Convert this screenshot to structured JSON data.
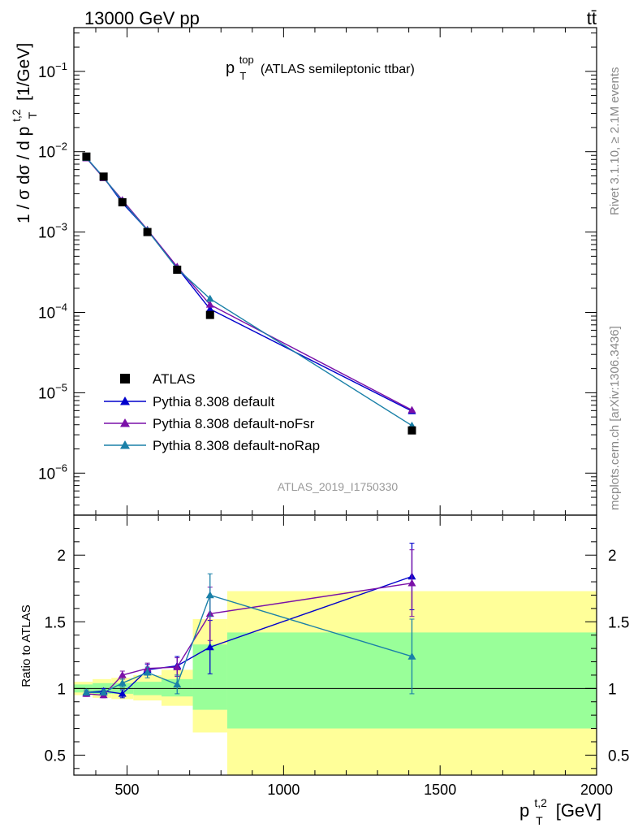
{
  "header": {
    "energy_label": "13000 GeV pp",
    "process_label": "tt̄"
  },
  "side_labels": {
    "rivet": "Rivet 3.1.10, ≥ 2.1M events",
    "mcplots": "mcplots.cern.ch [arXiv:1306.3436]"
  },
  "analysis_id": "ATLAS_2019_I1750330",
  "plot_title": {
    "main": "p",
    "sup": "top",
    "sub": "T",
    "rest": "(ATLAS semileptonic ttbar)"
  },
  "axes": {
    "ylabel_main": "1 / σ dσ / d p",
    "ylabel_sup": "t,2",
    "ylabel_sub": "T",
    "ylabel_unit": "[1/GeV]",
    "ratio_ylabel": "Ratio to ATLAS",
    "xlabel_main": "p",
    "xlabel_sup": "t,2",
    "xlabel_sub": "T",
    "xlabel_unit": "[GeV]",
    "x_ticks": [
      "500",
      "1000",
      "1500",
      "2000"
    ],
    "y_ticks_main": [
      {
        "base": "10",
        "exp": "−1"
      },
      {
        "base": "10",
        "exp": "−2"
      },
      {
        "base": "10",
        "exp": "−3"
      },
      {
        "base": "10",
        "exp": "−4"
      },
      {
        "base": "10",
        "exp": "−5"
      },
      {
        "base": "10",
        "exp": "−6"
      }
    ],
    "y_ticks_ratio": [
      "2",
      "1.5",
      "1",
      "0.5"
    ]
  },
  "legend": [
    {
      "label": "ATLAS",
      "color": "#000000",
      "marker": "square"
    },
    {
      "label": "Pythia 8.308 default",
      "color": "#0000cc",
      "marker": "triangle"
    },
    {
      "label": "Pythia 8.308 default-noFsr",
      "color": "#7a10a8",
      "marker": "triangle"
    },
    {
      "label": "Pythia 8.308 default-noRap",
      "color": "#1a80a8",
      "marker": "triangle"
    }
  ],
  "chart_data": {
    "type": "line",
    "xlim": [
      330,
      2000
    ],
    "ylim": [
      3e-07,
      0.35
    ],
    "yscale": "log",
    "ratio_ylim": [
      0.35,
      2.3
    ],
    "data": {
      "name": "ATLAS",
      "x": [
        370,
        425,
        485,
        565,
        660,
        765,
        1410
      ],
      "y": [
        0.0087,
        0.0049,
        0.00235,
        0.001,
        0.00034,
        9.3e-05,
        3.4e-06
      ]
    },
    "band_edges": [
      330,
      390,
      450,
      520,
      610,
      710,
      820,
      2000
    ],
    "band_inner": [
      [
        0.97,
        1.03
      ],
      [
        0.96,
        1.04
      ],
      [
        0.96,
        1.04
      ],
      [
        0.95,
        1.05
      ],
      [
        0.94,
        1.07
      ],
      [
        0.84,
        1.33
      ],
      [
        0.7,
        1.42
      ]
    ],
    "band_outer": [
      [
        0.95,
        1.05
      ],
      [
        0.93,
        1.07
      ],
      [
        0.92,
        1.08
      ],
      [
        0.91,
        1.1
      ],
      [
        0.87,
        1.14
      ],
      [
        0.67,
        1.52
      ],
      [
        0.2,
        1.73
      ]
    ],
    "series": [
      {
        "name": "Pythia 8.308 default",
        "color": "#0000cc",
        "x": [
          370,
          425,
          485,
          565,
          660,
          765,
          1410
        ],
        "y": [
          0.0084,
          0.0048,
          0.0023,
          0.00106,
          0.00036,
          0.00011,
          5.9e-06
        ],
        "ratio": [
          0.97,
          0.98,
          0.96,
          1.14,
          1.17,
          1.31,
          1.84
        ],
        "ratio_err": [
          0.02,
          0.02,
          0.03,
          0.04,
          0.07,
          0.2,
          0.25
        ]
      },
      {
        "name": "Pythia 8.308 default-noFsr",
        "color": "#7a10a8",
        "x": [
          370,
          425,
          485,
          565,
          660,
          765,
          1410
        ],
        "y": [
          0.0083,
          0.0047,
          0.0025,
          0.00107,
          0.00037,
          0.000125,
          6.1e-06
        ],
        "ratio": [
          0.96,
          0.95,
          1.1,
          1.15,
          1.16,
          1.56,
          1.79
        ],
        "ratio_err": [
          0.02,
          0.02,
          0.03,
          0.04,
          0.07,
          0.2,
          0.25
        ]
      },
      {
        "name": "Pythia 8.308 default-noRap",
        "color": "#1a80a8",
        "x": [
          370,
          425,
          485,
          565,
          660,
          765,
          1410
        ],
        "y": [
          0.0084,
          0.0048,
          0.0024,
          0.00105,
          0.00035,
          0.000148,
          3.9e-06
        ],
        "ratio": [
          0.97,
          0.97,
          1.04,
          1.12,
          1.03,
          1.7,
          1.24
        ],
        "ratio_err": [
          0.02,
          0.02,
          0.03,
          0.04,
          0.07,
          0.16,
          0.28
        ]
      }
    ]
  }
}
